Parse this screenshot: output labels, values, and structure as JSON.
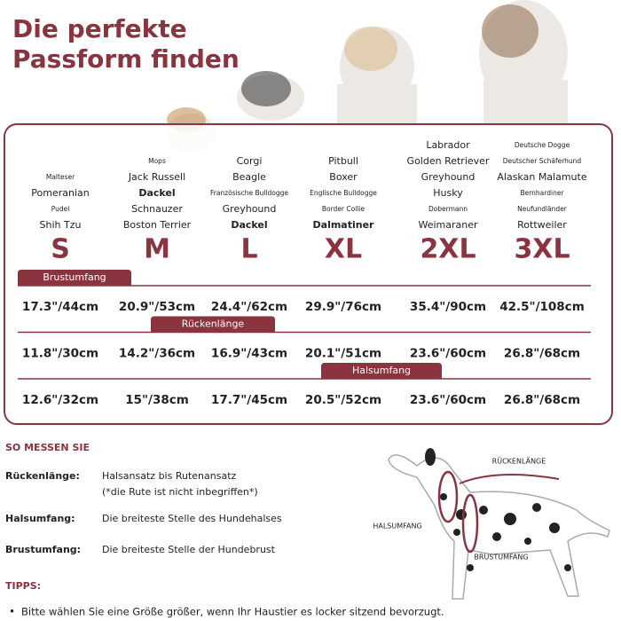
{
  "title": [
    "Die perfekte",
    "Passform finden"
  ],
  "sizes": [
    {
      "label": "S",
      "breeds": [
        {
          "name": "Malteser",
          "style": "small"
        },
        {
          "name": "Pomeranian",
          "style": "normal"
        },
        {
          "name": "Pudel",
          "style": "small"
        },
        {
          "name": "Shih Tzu",
          "style": "normal"
        }
      ]
    },
    {
      "label": "M",
      "breeds": [
        {
          "name": "Mops",
          "style": "small"
        },
        {
          "name": "Jack Russell",
          "style": "normal"
        },
        {
          "name": "Dackel",
          "style": "bold"
        },
        {
          "name": "Schnauzer",
          "style": "normal"
        },
        {
          "name": "Boston Terrier",
          "style": "normal"
        }
      ]
    },
    {
      "label": "L",
      "breeds": [
        {
          "name": "Corgi",
          "style": "normal"
        },
        {
          "name": "Beagle",
          "style": "normal"
        },
        {
          "name": "Französische Bulldogge",
          "style": "small"
        },
        {
          "name": "Greyhound",
          "style": "normal"
        },
        {
          "name": "Dackel",
          "style": "bold"
        }
      ]
    },
    {
      "label": "XL",
      "breeds": [
        {
          "name": "Pitbull",
          "style": "normal"
        },
        {
          "name": "Boxer",
          "style": "normal"
        },
        {
          "name": "Englische Bulldogge",
          "style": "small"
        },
        {
          "name": "Border Collie",
          "style": "small"
        },
        {
          "name": "Dalmatiner",
          "style": "bold"
        }
      ]
    },
    {
      "label": "2XL",
      "breeds": [
        {
          "name": "Labrador",
          "style": "normal"
        },
        {
          "name": "Golden Retriever",
          "style": "normal"
        },
        {
          "name": "Greyhound",
          "style": "normal"
        },
        {
          "name": "Husky",
          "style": "normal"
        },
        {
          "name": "Dobermann",
          "style": "small"
        },
        {
          "name": "Weimaraner",
          "style": "normal"
        }
      ]
    },
    {
      "label": "3XL",
      "breeds": [
        {
          "name": "Deutsche Dogge",
          "style": "small"
        },
        {
          "name": "Deutscher Schäferhund",
          "style": "small"
        },
        {
          "name": "Alaskan Malamute",
          "style": "normal"
        },
        {
          "name": "Bernhardiner",
          "style": "small"
        },
        {
          "name": "Neufundländer",
          "style": "small"
        },
        {
          "name": "Rottweiler",
          "style": "normal"
        }
      ]
    }
  ],
  "measurements": [
    {
      "name": "Brustumfang",
      "values": [
        "17.3\"/44cm",
        "20.9\"/53cm",
        "24.4\"/62cm",
        "29.9\"/76cm",
        "35.4\"/90cm",
        "42.5\"/108cm"
      ]
    },
    {
      "name": "Rückenlänge",
      "values": [
        "11.8\"/30cm",
        "14.2\"/36cm",
        "16.9\"/43cm",
        "20.1\"/51cm",
        "23.6\"/60cm",
        "26.8\"/68cm"
      ]
    },
    {
      "name": "Halsumfang",
      "values": [
        "12.6\"/32cm",
        "15\"/38cm",
        "17.7\"/45cm",
        "20.5\"/52cm",
        "23.6\"/60cm",
        "26.8\"/68cm"
      ]
    }
  ],
  "how_to": {
    "title": "SO MESSEN SIE",
    "items": [
      {
        "label": "Rückenlänge:",
        "text": [
          "Halsansatz bis Rutenansatz",
          "(*die Rute ist nicht inbegriffen*)"
        ]
      },
      {
        "label": "Halsumfang:",
        "text": [
          "Die breiteste Stelle des Hundehalses"
        ]
      },
      {
        "label": "Brustumfang:",
        "text": [
          "Die breiteste Stelle der Hundebrust"
        ]
      }
    ]
  },
  "diagram": {
    "labels": [
      "RÜCKENLÄNGE",
      "HALSUMFANG",
      "BRUSTUMFANG"
    ]
  },
  "tips": {
    "title": "TIPPS:",
    "items": [
      "Bitte wählen Sie eine Größe größer, wenn Ihr Haustier es locker sitzend bevorzugt."
    ]
  }
}
